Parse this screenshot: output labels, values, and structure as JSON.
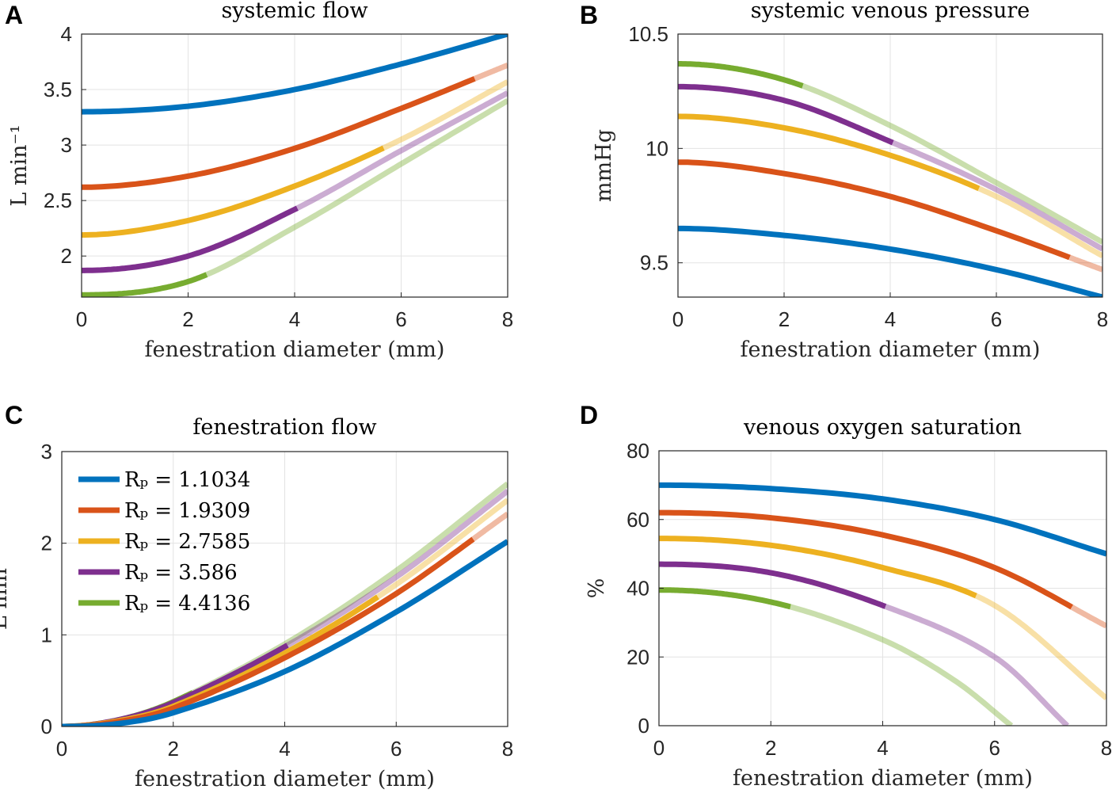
{
  "colors": {
    "blue": "#0072BD",
    "orange": "#D95319",
    "yellow": "#EDB120",
    "purple": "#7E2F8E",
    "green": "#77AC30"
  },
  "chart_data": [
    {
      "panel_letter": "A",
      "type": "line",
      "title": "systemic flow",
      "xlabel": "fenestration diameter (mm)",
      "ylabel": "L min⁻¹",
      "xlim": [
        0,
        8
      ],
      "ylim": [
        1.63,
        4
      ],
      "xticks": [
        0,
        2,
        4,
        6,
        8
      ],
      "yticks": [
        2,
        2.5,
        3,
        3.5,
        4
      ],
      "grid": true,
      "series": [
        {
          "color": "blue",
          "x": [
            0,
            2,
            4,
            6,
            8
          ],
          "y": [
            3.3,
            3.35,
            3.5,
            3.73,
            4.0
          ],
          "solid_until": 8
        },
        {
          "color": "orange",
          "x": [
            0,
            2,
            4,
            6,
            8
          ],
          "y": [
            2.62,
            2.72,
            2.97,
            3.33,
            3.72
          ],
          "solid_until": 7.38
        },
        {
          "color": "yellow",
          "x": [
            0,
            2,
            4,
            6,
            8
          ],
          "y": [
            2.19,
            2.32,
            2.63,
            3.05,
            3.57
          ],
          "solid_until": 5.67
        },
        {
          "color": "purple",
          "x": [
            0,
            2,
            4,
            6,
            8
          ],
          "y": [
            1.87,
            2.0,
            2.42,
            2.95,
            3.47
          ],
          "solid_until": 4.05
        },
        {
          "color": "green",
          "x": [
            0,
            2,
            4,
            6,
            8
          ],
          "y": [
            1.65,
            1.77,
            2.26,
            2.83,
            3.4
          ],
          "solid_until": 2.35
        }
      ]
    },
    {
      "panel_letter": "B",
      "type": "line",
      "title": "systemic venous pressure",
      "xlabel": "fenestration diameter (mm)",
      "ylabel": "mmHg",
      "xlim": [
        0,
        8
      ],
      "ylim": [
        9.35,
        10.5
      ],
      "xticks": [
        0,
        2,
        4,
        6,
        8
      ],
      "yticks": [
        9.5,
        10,
        10.5
      ],
      "grid": true,
      "series": [
        {
          "color": "blue",
          "x": [
            0,
            2,
            4,
            6,
            8
          ],
          "y": [
            9.65,
            9.62,
            9.56,
            9.47,
            9.35
          ],
          "solid_until": 8
        },
        {
          "color": "orange",
          "x": [
            0,
            2,
            4,
            6,
            8
          ],
          "y": [
            9.94,
            9.89,
            9.79,
            9.64,
            9.47
          ],
          "solid_until": 7.38
        },
        {
          "color": "yellow",
          "x": [
            0,
            2,
            4,
            6,
            8
          ],
          "y": [
            10.14,
            10.09,
            9.97,
            9.79,
            9.53
          ],
          "solid_until": 5.67
        },
        {
          "color": "purple",
          "x": [
            0,
            2,
            4,
            6,
            8
          ],
          "y": [
            10.27,
            10.21,
            10.03,
            9.82,
            9.56
          ],
          "solid_until": 4.05
        },
        {
          "color": "green",
          "x": [
            0,
            2,
            4,
            6,
            8
          ],
          "y": [
            10.37,
            10.3,
            10.1,
            9.85,
            9.59
          ],
          "solid_until": 2.35
        }
      ]
    },
    {
      "panel_letter": "C",
      "type": "line",
      "title": "fenestration flow",
      "xlabel": "fenestration diameter (mm)",
      "ylabel": "L min⁻¹",
      "xlim": [
        0,
        8
      ],
      "ylim": [
        0,
        3
      ],
      "xticks": [
        0,
        2,
        4,
        6,
        8
      ],
      "yticks": [
        0,
        1,
        2,
        3
      ],
      "grid": true,
      "legend": "top-left",
      "series": [
        {
          "name": "Rₚ = 1.1034",
          "color": "blue",
          "x": [
            0,
            1,
            2,
            4,
            6,
            8
          ],
          "y": [
            0,
            0.03,
            0.15,
            0.6,
            1.25,
            2.02
          ],
          "solid_until": 8
        },
        {
          "name": "Rₚ = 1.9309",
          "color": "orange",
          "x": [
            0,
            1,
            2,
            4,
            6,
            8
          ],
          "y": [
            0,
            0.05,
            0.2,
            0.75,
            1.45,
            2.32
          ],
          "solid_until": 7.38
        },
        {
          "name": "Rₚ = 2.7585",
          "color": "yellow",
          "x": [
            0,
            1,
            2,
            4,
            6,
            8
          ],
          "y": [
            0,
            0.06,
            0.22,
            0.8,
            1.55,
            2.47
          ],
          "solid_until": 5.67
        },
        {
          "name": "Rₚ = 3.586",
          "color": "purple",
          "x": [
            0,
            1,
            2,
            4,
            6,
            8
          ],
          "y": [
            0,
            0.07,
            0.26,
            0.87,
            1.63,
            2.57
          ],
          "solid_until": 4.05
        },
        {
          "name": "Rₚ = 4.4136",
          "color": "green",
          "x": [
            0,
            1,
            2,
            4,
            6,
            8
          ],
          "y": [
            0,
            0.07,
            0.27,
            0.9,
            1.7,
            2.65
          ],
          "solid_until": 2.35
        }
      ]
    },
    {
      "panel_letter": "D",
      "type": "line",
      "title": "venous oxygen saturation",
      "xlabel": "fenestration diameter (mm)",
      "ylabel": "%",
      "xlim": [
        0,
        8
      ],
      "ylim": [
        0,
        80
      ],
      "xticks": [
        0,
        2,
        4,
        6,
        8
      ],
      "yticks": [
        0,
        20,
        40,
        60,
        80
      ],
      "grid": true,
      "series": [
        {
          "color": "blue",
          "x": [
            0,
            2,
            4,
            6,
            8
          ],
          "y": [
            70,
            69,
            66,
            60,
            50
          ],
          "solid_until": 8
        },
        {
          "color": "orange",
          "x": [
            0,
            2,
            4,
            6,
            8
          ],
          "y": [
            62,
            60.5,
            55.5,
            46,
            29
          ],
          "solid_until": 7.38
        },
        {
          "color": "yellow",
          "x": [
            0,
            2,
            4,
            6,
            8
          ],
          "y": [
            54.5,
            52.5,
            46,
            35,
            8
          ],
          "solid_until": 5.67
        },
        {
          "color": "purple",
          "x": [
            0,
            2,
            4,
            6,
            7.3
          ],
          "y": [
            47,
            44.5,
            35,
            20,
            0
          ],
          "solid_until": 4.05
        },
        {
          "color": "green",
          "x": [
            0,
            2,
            4,
            5.3,
            6.3
          ],
          "y": [
            39.5,
            36,
            25,
            13,
            0
          ],
          "solid_until": 2.35
        }
      ]
    }
  ]
}
